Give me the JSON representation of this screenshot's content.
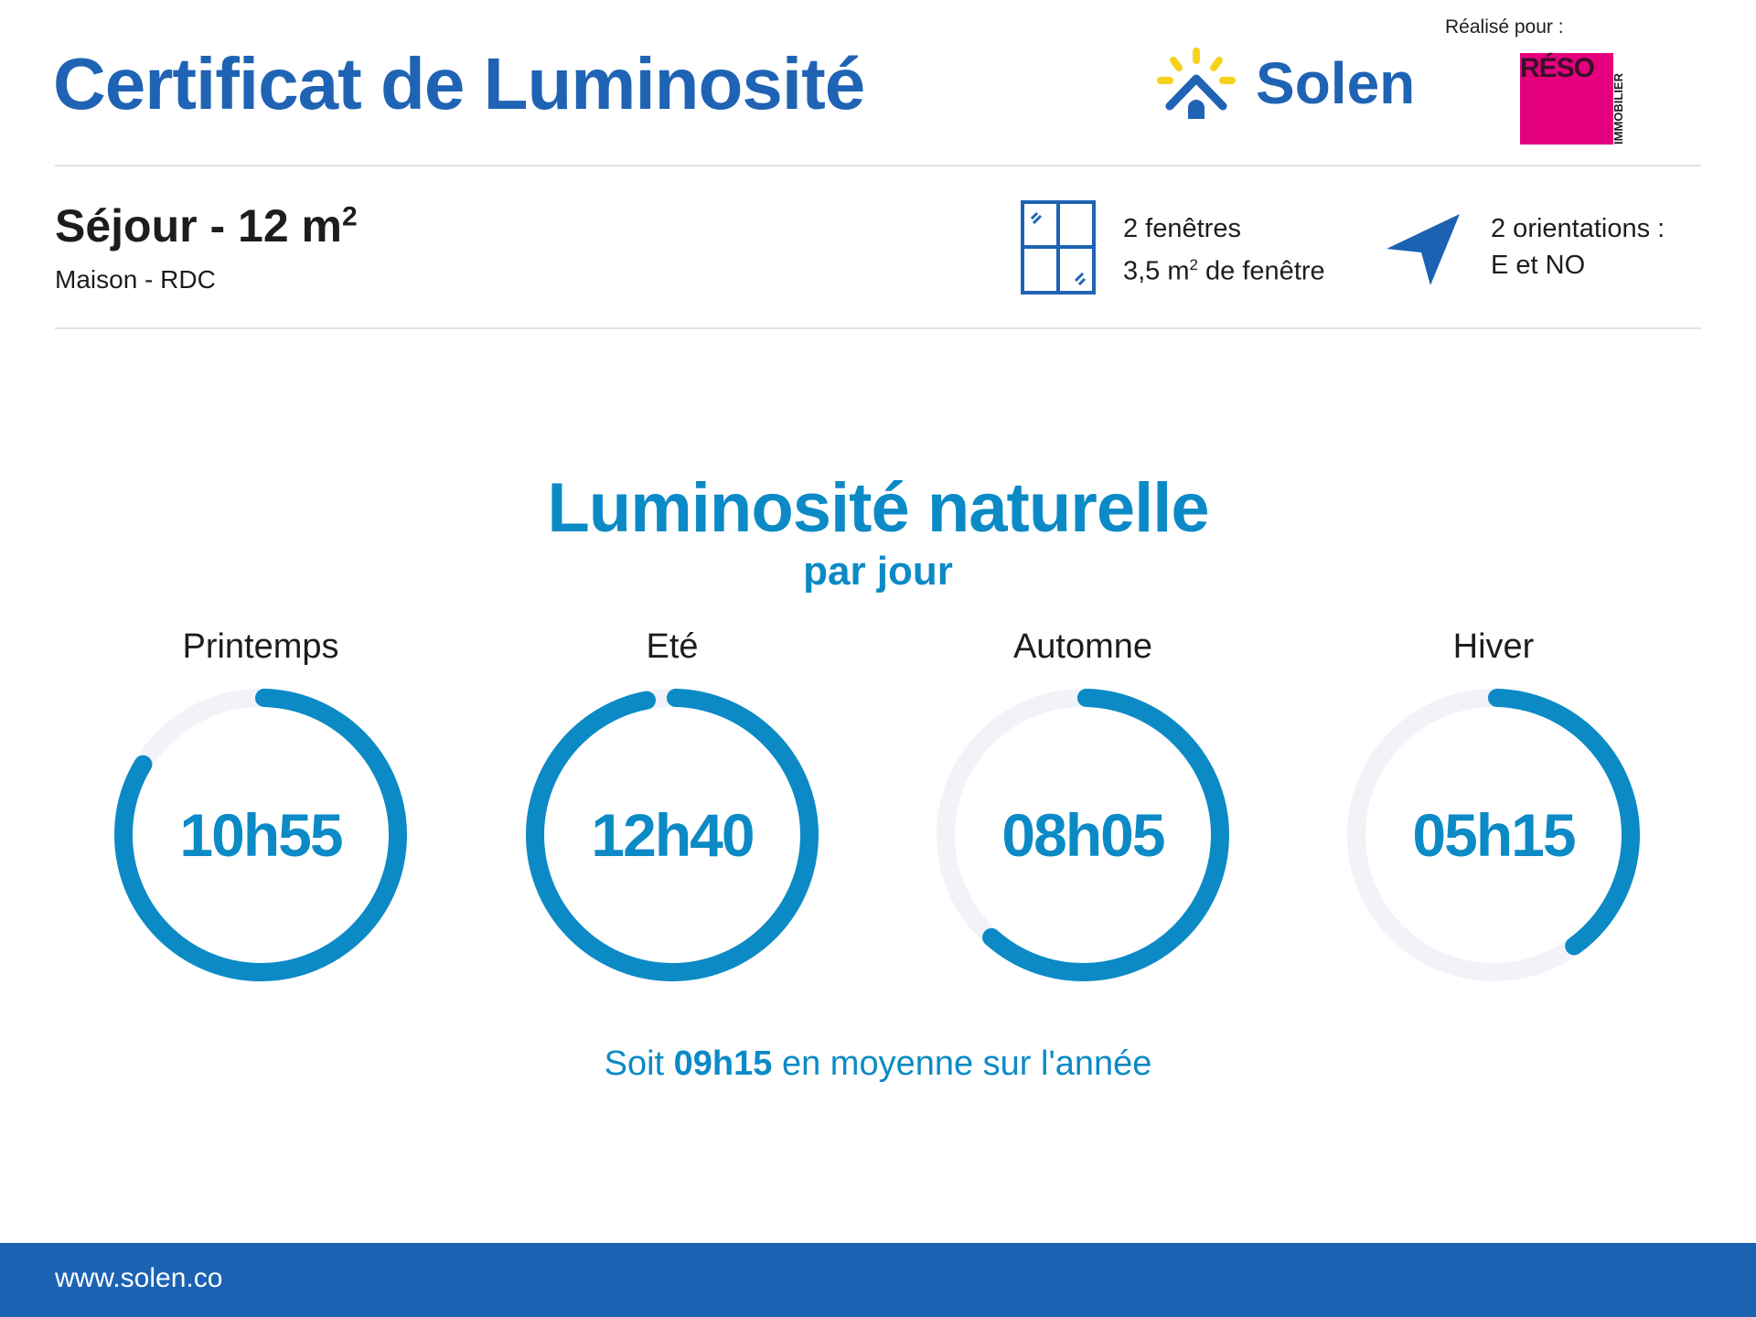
{
  "header": {
    "title": "Certificat de Luminosité",
    "brand": "Solen",
    "made_for_label": "Réalisé pour :",
    "client_logo_text": "RÉSO IMMOBILIER"
  },
  "room": {
    "name": "Séjour - 12 m",
    "name_sup": "2",
    "location": "Maison - RDC"
  },
  "windows": {
    "icon": "window-icon",
    "line1": "2 fenêtres",
    "line2_a": "3,5 m",
    "line2_sup": "2",
    "line2_b": " de fenêtre"
  },
  "orientation": {
    "icon": "compass-arrow-icon",
    "line1": "2 orientations :",
    "line2": "E et NO"
  },
  "section": {
    "title": "Luminosité naturelle",
    "subtitle": "par jour"
  },
  "seasons": [
    {
      "label": "Printemps",
      "value": "10h55",
      "fraction": 0.84
    },
    {
      "label": "Eté",
      "value": "12h40",
      "fraction": 0.974
    },
    {
      "label": "Automne",
      "value": "08h05",
      "fraction": 0.62
    },
    {
      "label": "Hiver",
      "value": "05h15",
      "fraction": 0.404
    }
  ],
  "summary": {
    "prefix": "Soit ",
    "value": "09h15",
    "suffix": " en moyenne sur l'année"
  },
  "footer": {
    "url": "www.solen.co"
  },
  "colors": {
    "brand": "#1f63b4",
    "accent": "#0b8ac6",
    "track": "#f1f3f8",
    "footer": "#1b62b3",
    "client": "#e5007e",
    "sun": "#f5d21c"
  }
}
